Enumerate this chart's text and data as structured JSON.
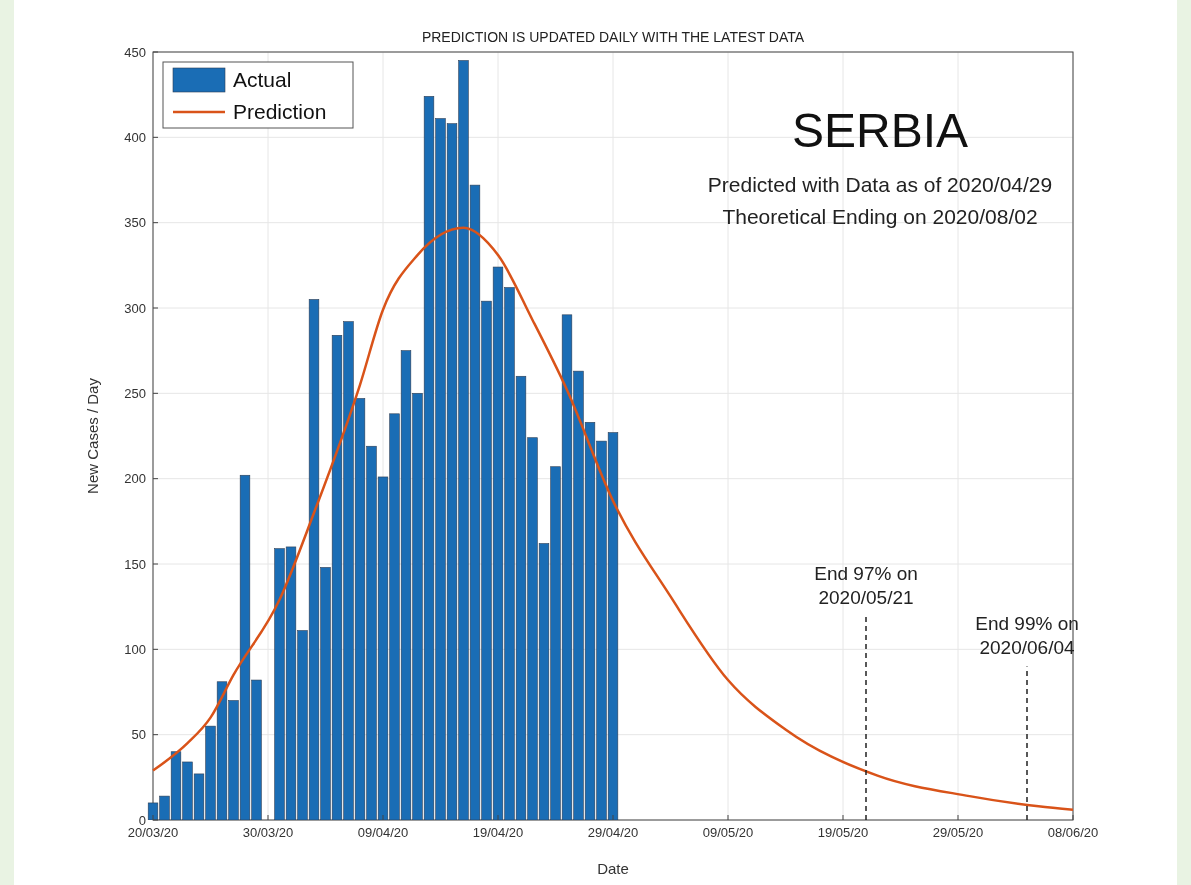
{
  "chart_data": {
    "type": "bar",
    "title": "PREDICTION IS UPDATED DAILY WITH THE LATEST DATA",
    "xlabel": "Date",
    "ylabel": "New Cases / Day",
    "x": [
      "2020-03-20",
      "2020-03-21",
      "2020-03-22",
      "2020-03-23",
      "2020-03-24",
      "2020-03-25",
      "2020-03-26",
      "2020-03-27",
      "2020-03-28",
      "2020-03-29",
      "2020-03-30",
      "2020-03-31",
      "2020-04-01",
      "2020-04-02",
      "2020-04-03",
      "2020-04-04",
      "2020-04-05",
      "2020-04-06",
      "2020-04-07",
      "2020-04-08",
      "2020-04-09",
      "2020-04-10",
      "2020-04-11",
      "2020-04-12",
      "2020-04-13",
      "2020-04-14",
      "2020-04-15",
      "2020-04-16",
      "2020-04-17",
      "2020-04-18",
      "2020-04-19",
      "2020-04-20",
      "2020-04-21",
      "2020-04-22",
      "2020-04-23",
      "2020-04-24",
      "2020-04-25",
      "2020-04-26",
      "2020-04-27",
      "2020-04-28",
      "2020-04-29"
    ],
    "series": [
      {
        "name": "Actual",
        "color": "#1a6db5",
        "values": [
          10,
          14,
          40,
          34,
          27,
          55,
          81,
          70,
          202,
          82,
          0,
          159,
          160,
          111,
          305,
          148,
          284,
          292,
          247,
          219,
          201,
          238,
          275,
          250,
          424,
          411,
          408,
          445,
          372,
          304,
          324,
          312,
          260,
          224,
          162,
          207,
          296,
          263,
          233,
          222,
          227
        ]
      },
      {
        "name": "Prediction",
        "type": "line",
        "color": "#d95319",
        "x": [
          "2020-03-20",
          "2020-03-23",
          "2020-03-25",
          "2020-03-27",
          "2020-03-31",
          "2020-04-03",
          "2020-04-07",
          "2020-04-09",
          "2020-04-12",
          "2020-04-16",
          "2020-04-19",
          "2020-04-22",
          "2020-04-25",
          "2020-04-29",
          "2020-05-04",
          "2020-05-09",
          "2020-05-14",
          "2020-05-22",
          "2020-05-30",
          "2020-06-05",
          "2020-06-08"
        ],
        "values": [
          29,
          45,
          60,
          85,
          129,
          180,
          255,
          299,
          331,
          347,
          331,
          293,
          252,
          187,
          131,
          82,
          53,
          26,
          14,
          8,
          6
        ]
      }
    ],
    "xlim": [
      "2020-03-20",
      "2020-06-08"
    ],
    "xticks": [
      {
        "value": "2020-03-20",
        "label": "20/03/20"
      },
      {
        "value": "2020-03-30",
        "label": "30/03/20"
      },
      {
        "value": "2020-04-09",
        "label": "09/04/20"
      },
      {
        "value": "2020-04-19",
        "label": "19/04/20"
      },
      {
        "value": "2020-04-29",
        "label": "29/04/20"
      },
      {
        "value": "2020-05-09",
        "label": "09/05/20"
      },
      {
        "value": "2020-05-19",
        "label": "19/05/20"
      },
      {
        "value": "2020-05-29",
        "label": "29/05/20"
      },
      {
        "value": "2020-06-08",
        "label": "08/06/20"
      }
    ],
    "ylim": [
      0,
      450
    ],
    "yticks": [
      0,
      50,
      100,
      150,
      200,
      250,
      300,
      350,
      400,
      450
    ],
    "grid": true,
    "legend": "top left",
    "ref_lines": [
      {
        "axis": "x",
        "value": "2020-05-21",
        "label": "End 97% on 2020/05/21",
        "line_style": "dashed"
      },
      {
        "axis": "x",
        "value": "2020-06-04",
        "label": "End 99% on 2020/06/04",
        "line_style": "dashed"
      }
    ],
    "annotations": [
      "SERBIA",
      "Predicted with Data as of 2020/04/29",
      "Theoretical Ending on 2020/08/02"
    ]
  }
}
